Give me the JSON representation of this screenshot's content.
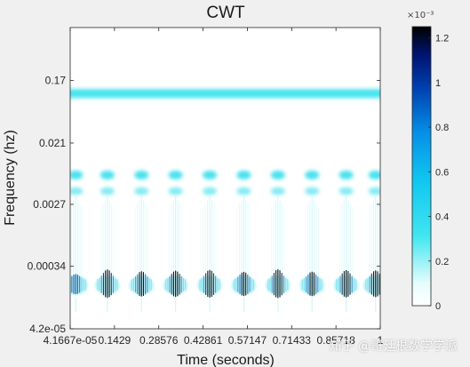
{
  "chart_data": {
    "type": "heatmap",
    "title": "CWT",
    "xlabel": "Time (seconds)",
    "ylabel": "Frequency (hz)",
    "x_ticks": [
      "4.1667e-05",
      "0.1429",
      "0.28576",
      "0.42861",
      "0.57147",
      "0.71433",
      "0.85718",
      "1"
    ],
    "x_tick_values": [
      4.1667e-05,
      0.1429,
      0.28576,
      0.42861,
      0.57147,
      0.71433,
      0.85718,
      1
    ],
    "y_ticks": [
      "0.17",
      "0.021",
      "0.0027",
      "0.00034",
      "4.2e-05"
    ],
    "y_tick_values": [
      0.17,
      0.021,
      0.0027,
      0.00034,
      4.2e-05
    ],
    "y_scale": "log",
    "xlim": [
      4.1667e-05,
      1
    ],
    "colorbar": {
      "exponent_label": "×10⁻³",
      "ticks": [
        "1.2",
        "1",
        "0.8",
        "0.6",
        "0.4",
        "0.2",
        "0"
      ],
      "tick_values": [
        1.2,
        1.0,
        0.8,
        0.6,
        0.4,
        0.2,
        0
      ],
      "range": [
        0,
        1.25
      ]
    },
    "features": {
      "constant_band_frequency": 0.11,
      "constant_band_level": 0.45,
      "burst_times": [
        0.018,
        0.12,
        0.23,
        0.34,
        0.45,
        0.56,
        0.67,
        0.78,
        0.89,
        0.985
      ],
      "burst_blob_frequencies": [
        0.0072,
        0.0042
      ],
      "burst_low_frequency": 0.00018,
      "burst_peak_level": 1.2
    }
  },
  "watermark": "知乎 @哥廷根数学学派"
}
